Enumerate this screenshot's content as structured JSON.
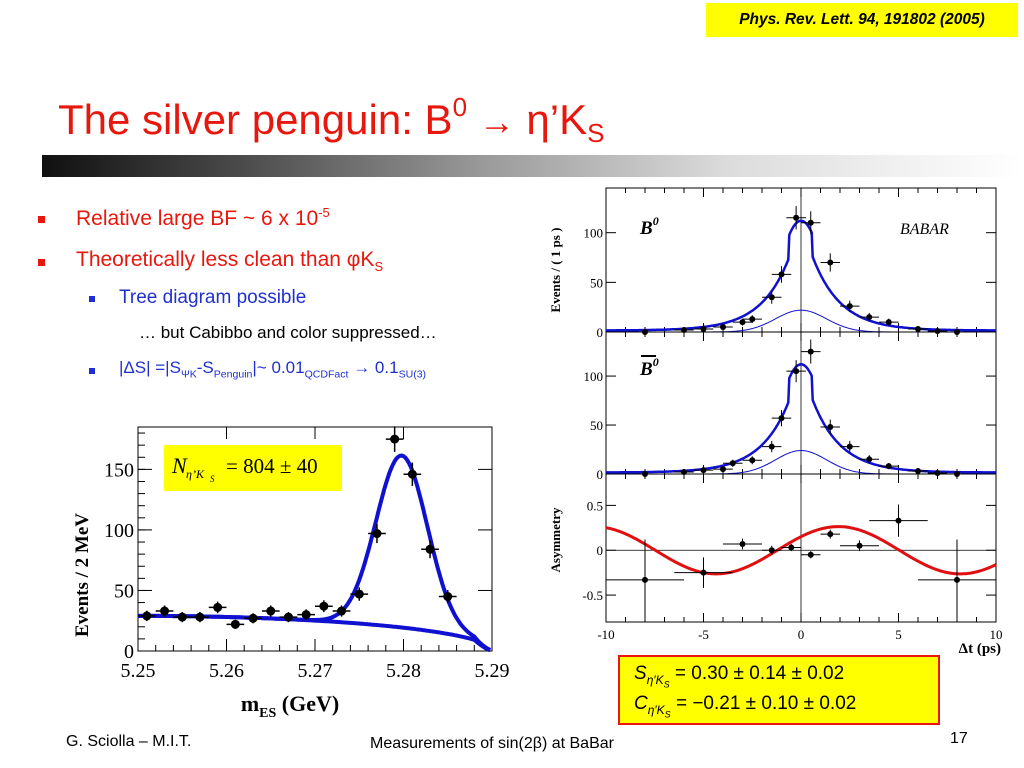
{
  "slide": {
    "reference": "Phys. Rev. Lett. 94, 191802 (2005)",
    "title_main": "The silver penguin: B",
    "title_sup": "0",
    "title_arrow": "→",
    "title_eta": "η’K",
    "title_sub": "S",
    "bullets": {
      "b1_text": "Relative large BF ~ 6 x 10",
      "b1_exp": "-5",
      "b2_text": "Theoretically less clean than φK",
      "b2_sub": "S",
      "b3_text": "Tree diagram possible",
      "b4_text": "… but Cabibbo and color suppressed…",
      "b5_a": "|ΔS| =|S",
      "b5_sub1": "ΨK",
      "b5_b": "-S",
      "b5_sub2": "Penguin",
      "b5_c": "|~ 0.01",
      "b5_sub3": "QCDFact",
      "b5_arrow": "→",
      "b5_d": " 0.1",
      "b5_sub4": "SU(3)"
    },
    "results": {
      "s_label": "S",
      "s_sub": "η′K",
      "s_subsub": "S",
      "s_value": "=  0.30 ± 0.14 ± 0.02",
      "c_label": "C",
      "c_sub": "η′K",
      "c_subsub": "S",
      "c_value": "= −0.21 ± 0.10 ± 0.02"
    },
    "footer": {
      "author": "G. Sciolla – M.I.T.",
      "center": "Measurements of sin(2β) at BaBar",
      "page": "17"
    },
    "colors": {
      "title": "#e8170e",
      "sub_bullet": "#2030d0",
      "highlight": "#ffff00",
      "fit_blue": "#1010d0",
      "fit_red": "#e01010"
    }
  },
  "chart_data": [
    {
      "type": "scatter",
      "title": "",
      "xlabel": "m_ES (GeV)",
      "ylabel": "Events / 2 MeV",
      "xlim": [
        5.25,
        5.29
      ],
      "ylim": [
        0,
        185
      ],
      "xticks": [
        "5.25",
        "5.26",
        "5.27",
        "5.28",
        "5.29"
      ],
      "yticks": [
        "0",
        "50",
        "100",
        "150"
      ],
      "annotation": {
        "n_label": "N",
        "n_sub": "η’K",
        "n_subsub": "S",
        "n_value": "= 804 ± 40"
      },
      "points": [
        {
          "x": 5.251,
          "y": 29
        },
        {
          "x": 5.253,
          "y": 33
        },
        {
          "x": 5.255,
          "y": 28
        },
        {
          "x": 5.257,
          "y": 28
        },
        {
          "x": 5.259,
          "y": 36
        },
        {
          "x": 5.261,
          "y": 22
        },
        {
          "x": 5.263,
          "y": 27
        },
        {
          "x": 5.265,
          "y": 33
        },
        {
          "x": 5.267,
          "y": 28
        },
        {
          "x": 5.269,
          "y": 30
        },
        {
          "x": 5.271,
          "y": 37
        },
        {
          "x": 5.273,
          "y": 33
        },
        {
          "x": 5.275,
          "y": 47
        },
        {
          "x": 5.277,
          "y": 97
        },
        {
          "x": 5.279,
          "y": 175
        },
        {
          "x": 5.281,
          "y": 146
        },
        {
          "x": 5.283,
          "y": 84
        },
        {
          "x": 5.285,
          "y": 45
        }
      ],
      "fit_total": "signal+background",
      "fit_background": "argus"
    },
    {
      "type": "scatter",
      "title": "",
      "xlabel": "",
      "ylabel": "Events / ( 1 ps )",
      "panel_label": "B0",
      "logo": "BABAR",
      "xlim": [
        -10,
        10
      ],
      "ylim": [
        0,
        145
      ],
      "yticks": [
        "0",
        "50",
        "100"
      ],
      "points": [
        {
          "x": -8,
          "y": 0
        },
        {
          "x": -6,
          "y": 2
        },
        {
          "x": -5,
          "y": 3
        },
        {
          "x": -4,
          "y": 5
        },
        {
          "x": -3,
          "y": 10
        },
        {
          "x": -2.5,
          "y": 13
        },
        {
          "x": -1.5,
          "y": 35
        },
        {
          "x": -1,
          "y": 58
        },
        {
          "x": -0.25,
          "y": 115
        },
        {
          "x": 0.5,
          "y": 110
        },
        {
          "x": 1.5,
          "y": 70
        },
        {
          "x": 2.5,
          "y": 26
        },
        {
          "x": 3.5,
          "y": 15
        },
        {
          "x": 4.5,
          "y": 10
        },
        {
          "x": 6,
          "y": 3
        },
        {
          "x": 7,
          "y": 1
        },
        {
          "x": 8,
          "y": 0
        }
      ]
    },
    {
      "type": "scatter",
      "title": "",
      "xlabel": "",
      "ylabel": "",
      "panel_label": "B̅0",
      "xlim": [
        -10,
        10
      ],
      "ylim": [
        0,
        145
      ],
      "yticks": [
        "0",
        "50",
        "100"
      ],
      "points": [
        {
          "x": -8,
          "y": 0
        },
        {
          "x": -6,
          "y": 2
        },
        {
          "x": -5,
          "y": 4
        },
        {
          "x": -4,
          "y": 5
        },
        {
          "x": -3.5,
          "y": 11
        },
        {
          "x": -2.5,
          "y": 14
        },
        {
          "x": -1.5,
          "y": 28
        },
        {
          "x": -1,
          "y": 57
        },
        {
          "x": -0.25,
          "y": 105
        },
        {
          "x": 0.5,
          "y": 125
        },
        {
          "x": 1.5,
          "y": 48
        },
        {
          "x": 2.5,
          "y": 28
        },
        {
          "x": 3.5,
          "y": 15
        },
        {
          "x": 4.5,
          "y": 8
        },
        {
          "x": 6,
          "y": 3
        },
        {
          "x": 7,
          "y": 1
        },
        {
          "x": 8,
          "y": 0
        }
      ]
    },
    {
      "type": "scatter",
      "title": "",
      "xlabel": "Δt (ps)",
      "ylabel": "Asymmetry",
      "xlim": [
        -10,
        10
      ],
      "ylim": [
        -0.8,
        0.85
      ],
      "xticks": [
        "-10",
        "-5",
        "0",
        "5",
        "10"
      ],
      "yticks": [
        "-0.5",
        "0",
        "0.5"
      ],
      "points": [
        {
          "x": -8,
          "y": -0.33
        },
        {
          "x": -5,
          "y": -0.25
        },
        {
          "x": -3,
          "y": 0.07
        },
        {
          "x": -1.5,
          "y": 0.0
        },
        {
          "x": -0.5,
          "y": 0.03
        },
        {
          "x": 0.5,
          "y": -0.05
        },
        {
          "x": 1.5,
          "y": 0.18
        },
        {
          "x": 3,
          "y": 0.05
        },
        {
          "x": 5,
          "y": 0.33
        },
        {
          "x": 8,
          "y": -0.33
        }
      ],
      "fit": {
        "S": 0.3,
        "C": -0.21
      }
    }
  ]
}
